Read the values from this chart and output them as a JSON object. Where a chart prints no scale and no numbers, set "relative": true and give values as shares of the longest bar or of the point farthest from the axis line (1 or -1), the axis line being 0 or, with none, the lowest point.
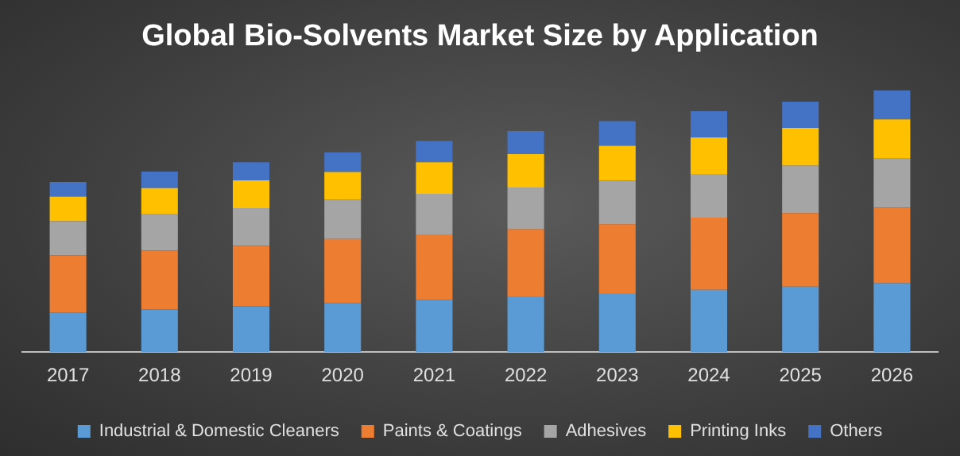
{
  "chart_data": {
    "type": "bar",
    "title": "Global Bio-Solvents Market Size by Application",
    "stacked": true,
    "relative": true,
    "legend": "bottom",
    "categories": [
      "2017",
      "2018",
      "2019",
      "2020",
      "2021",
      "2022",
      "2023",
      "2024",
      "2025",
      "2026"
    ],
    "series": [
      {
        "name": "Industrial & Domestic Cleaners",
        "color": "#5b9bd5",
        "values": [
          0.15,
          0.163,
          0.175,
          0.188,
          0.2,
          0.213,
          0.225,
          0.238,
          0.25,
          0.263
        ]
      },
      {
        "name": "Paints & Coatings",
        "color": "#ed7d31",
        "values": [
          0.219,
          0.225,
          0.231,
          0.244,
          0.25,
          0.256,
          0.263,
          0.275,
          0.281,
          0.288
        ]
      },
      {
        "name": "Adhesives",
        "color": "#a5a5a5",
        "values": [
          0.131,
          0.138,
          0.144,
          0.15,
          0.154,
          0.16,
          0.167,
          0.167,
          0.181,
          0.188
        ]
      },
      {
        "name": "Printing Inks",
        "color": "#ffc000",
        "values": [
          0.094,
          0.1,
          0.106,
          0.106,
          0.121,
          0.127,
          0.133,
          0.14,
          0.144,
          0.15
        ]
      },
      {
        "name": "Others",
        "color": "#4472c4",
        "values": [
          0.056,
          0.063,
          0.069,
          0.075,
          0.081,
          0.088,
          0.094,
          0.1,
          0.1,
          0.111
        ]
      }
    ]
  }
}
